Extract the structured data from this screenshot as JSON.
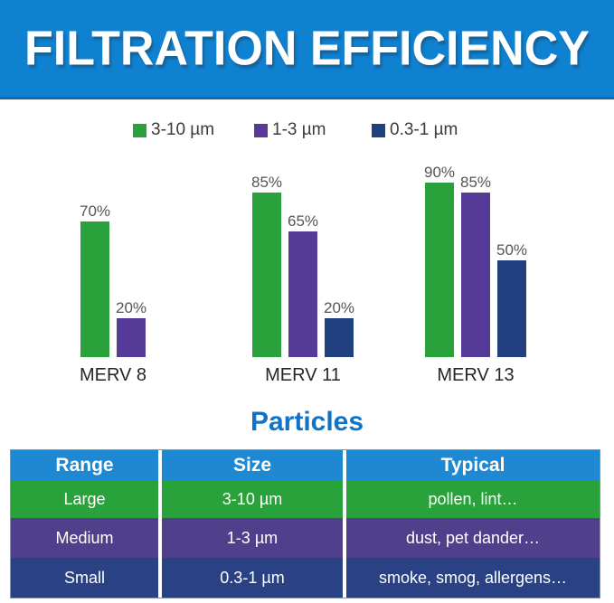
{
  "banner": {
    "title": "FILTRATION EFFICIENCY"
  },
  "colors": {
    "banner_bg": "#0f81d1",
    "green": "#2aa23c",
    "purple": "#553a97",
    "navy": "#21407f",
    "table_header_bg": "#1e88d2",
    "table_green": "#2aa23c",
    "table_purple": "#50408c",
    "table_navy": "#2a4183",
    "particles_title": "#1173c5"
  },
  "chart_data": {
    "type": "bar",
    "title": "FILTRATION EFFICIENCY",
    "categories": [
      "MERV 8",
      "MERV 11",
      "MERV 13"
    ],
    "series": [
      {
        "name": "3-10 µm",
        "color_key": "green",
        "values": [
          70,
          85,
          90
        ]
      },
      {
        "name": "1-3 µm",
        "color_key": "purple",
        "values": [
          20,
          65,
          85
        ]
      },
      {
        "name": "0.3-1 µm",
        "color_key": "navy",
        "values": [
          null,
          20,
          50
        ]
      }
    ],
    "value_suffix": "%",
    "ylim": [
      0,
      100
    ],
    "legend_position": "top",
    "grid": false,
    "data_labels": true
  },
  "particles": {
    "title": "Particles"
  },
  "table": {
    "columns": [
      "Range",
      "Size",
      "Typical"
    ],
    "rows": [
      {
        "range": "Large",
        "size": "3-10 µm",
        "typical": "pollen, lint…",
        "color_key": "table_green"
      },
      {
        "range": "Medium",
        "size": "1-3 µm",
        "typical": "dust, pet dander…",
        "color_key": "table_purple"
      },
      {
        "range": "Small",
        "size": "0.3-1 µm",
        "typical": "smoke, smog, allergens…",
        "color_key": "table_navy"
      }
    ]
  }
}
